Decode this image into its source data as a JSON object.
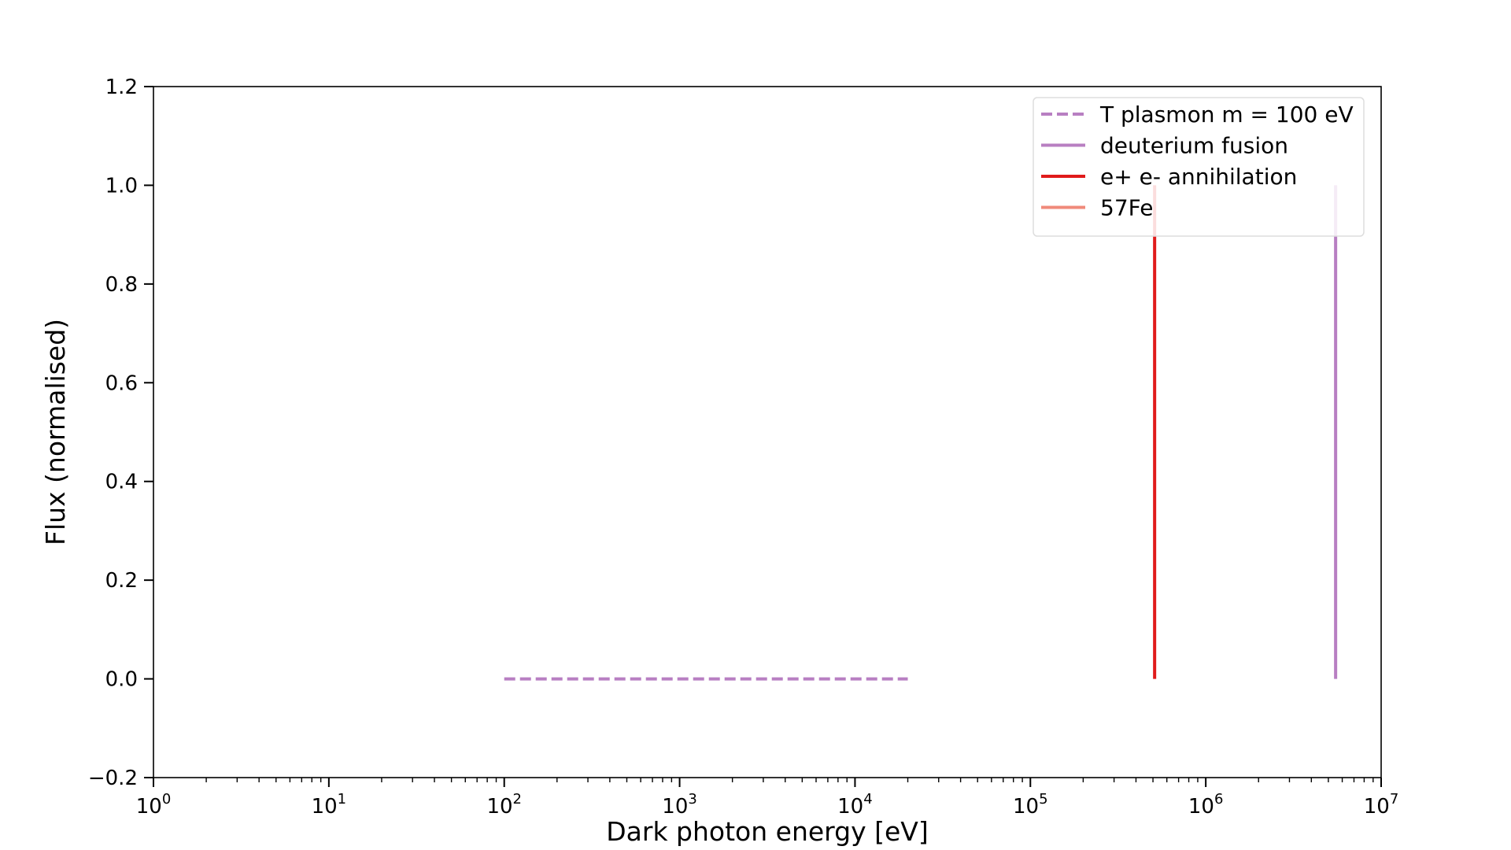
{
  "chart_data": {
    "type": "line",
    "xscale": "log",
    "xlim": [
      1,
      10000000
    ],
    "ylim": [
      -0.2,
      1.2
    ],
    "xlabel": "Dark photon energy [eV]",
    "ylabel": "Flux (normalised)",
    "grid": false,
    "legend_position": "top-right",
    "x_ticks": [
      {
        "base": "10",
        "exp": "0",
        "value": 1
      },
      {
        "base": "10",
        "exp": "1",
        "value": 10
      },
      {
        "base": "10",
        "exp": "2",
        "value": 100
      },
      {
        "base": "10",
        "exp": "3",
        "value": 1000
      },
      {
        "base": "10",
        "exp": "4",
        "value": 10000
      },
      {
        "base": "10",
        "exp": "5",
        "value": 100000
      },
      {
        "base": "10",
        "exp": "6",
        "value": 1000000
      },
      {
        "base": "10",
        "exp": "7",
        "value": 10000000
      }
    ],
    "y_ticks": [
      {
        "label": "−0.2",
        "value": -0.2
      },
      {
        "label": "0.0",
        "value": 0.0
      },
      {
        "label": "0.2",
        "value": 0.2
      },
      {
        "label": "0.4",
        "value": 0.4
      },
      {
        "label": "0.6",
        "value": 0.6
      },
      {
        "label": "0.8",
        "value": 0.8
      },
      {
        "label": "1.0",
        "value": 1.0
      },
      {
        "label": "1.2",
        "value": 1.2
      }
    ],
    "series": [
      {
        "name": "T plasmon m = 100 eV",
        "color": "#b87fc2",
        "style": "dashed",
        "x": [
          100,
          20000
        ],
        "y": [
          0,
          0
        ]
      },
      {
        "name": "deuterium fusion",
        "color": "#b87fc2",
        "style": "solid",
        "x": [
          5500000,
          5500000
        ],
        "y": [
          0,
          1
        ]
      },
      {
        "name": "e+ e- annihilation",
        "color": "#e01b1b",
        "style": "solid",
        "x": [
          511000,
          511000
        ],
        "y": [
          0,
          1
        ]
      },
      {
        "name": "57Fe",
        "color": "#f08a7a",
        "style": "solid",
        "x": [
          14400,
          14400
        ],
        "y": [
          0,
          0
        ]
      }
    ]
  }
}
